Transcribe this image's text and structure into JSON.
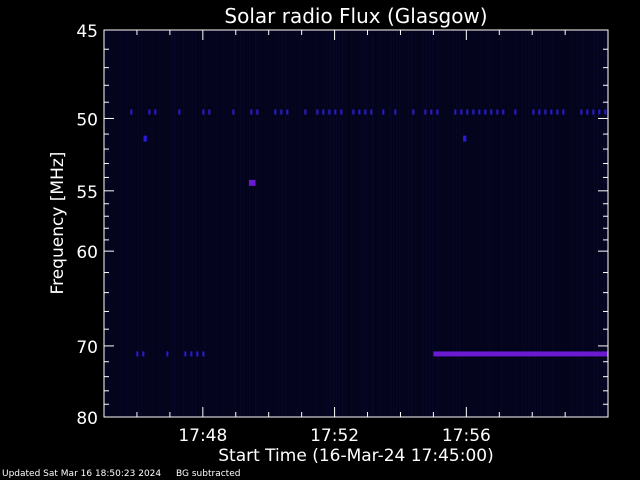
{
  "footer": {
    "updated": "Updated Sat Mar 16 18:50:23 2024",
    "note": "BG subtracted"
  },
  "colors": {
    "background": "#000000",
    "plot_bg": "#03031a",
    "axis": "#ffffff",
    "signal_low": "#1a1a7a",
    "signal_mid": "#2a1ad8",
    "signal_high": "#6a1ad0"
  },
  "chart_data": {
    "type": "heatmap",
    "title": "Solar radio Flux (Glasgow)",
    "xlabel": "Start Time (16-Mar-24 17:45:00)",
    "ylabel": "Frequency [MHz]",
    "x_unit": "minutes after 17:45:00",
    "xlim": [
      0,
      15.3
    ],
    "ylim_reciprocal": [
      45,
      80
    ],
    "y_scale": "reciprocal (1/f), high frequency at bottom",
    "x_ticks": [
      {
        "value": 3,
        "label": "17:48"
      },
      {
        "value": 7,
        "label": "17:52"
      },
      {
        "value": 11,
        "label": "17:56"
      }
    ],
    "y_ticks": [
      {
        "value": 45,
        "label": "45"
      },
      {
        "value": 50,
        "label": "50"
      },
      {
        "value": 55,
        "label": "55"
      },
      {
        "value": 60,
        "label": "60"
      },
      {
        "value": 70,
        "label": "70"
      },
      {
        "value": 80,
        "label": "80"
      }
    ],
    "y_minor_ticks": [
      46,
      47,
      48,
      49,
      51,
      52,
      53,
      54,
      56,
      57,
      58,
      59,
      62,
      64,
      66,
      68,
      72,
      74,
      76,
      78
    ],
    "features": [
      {
        "freq": 49.6,
        "t_start": 0.8,
        "t_end": 15.3,
        "intensity": "medium",
        "note": "intermittent narrowband interference"
      },
      {
        "freq": 71.0,
        "t_start": 0.8,
        "t_end": 3.3,
        "intensity": "medium",
        "note": "sparse narrowband interference"
      },
      {
        "freq": 71.0,
        "t_start": 10.0,
        "t_end": 15.3,
        "intensity": "high",
        "note": "persistent narrowband interference"
      },
      {
        "freq": 54.4,
        "t_start": 4.4,
        "t_end": 4.6,
        "intensity": "high",
        "note": "spot"
      },
      {
        "freq": 51.3,
        "t_start": 1.2,
        "t_end": 1.3,
        "intensity": "medium",
        "note": "spot"
      },
      {
        "freq": 51.3,
        "t_start": 10.9,
        "t_end": 11.0,
        "intensity": "medium",
        "note": "spot"
      }
    ]
  }
}
